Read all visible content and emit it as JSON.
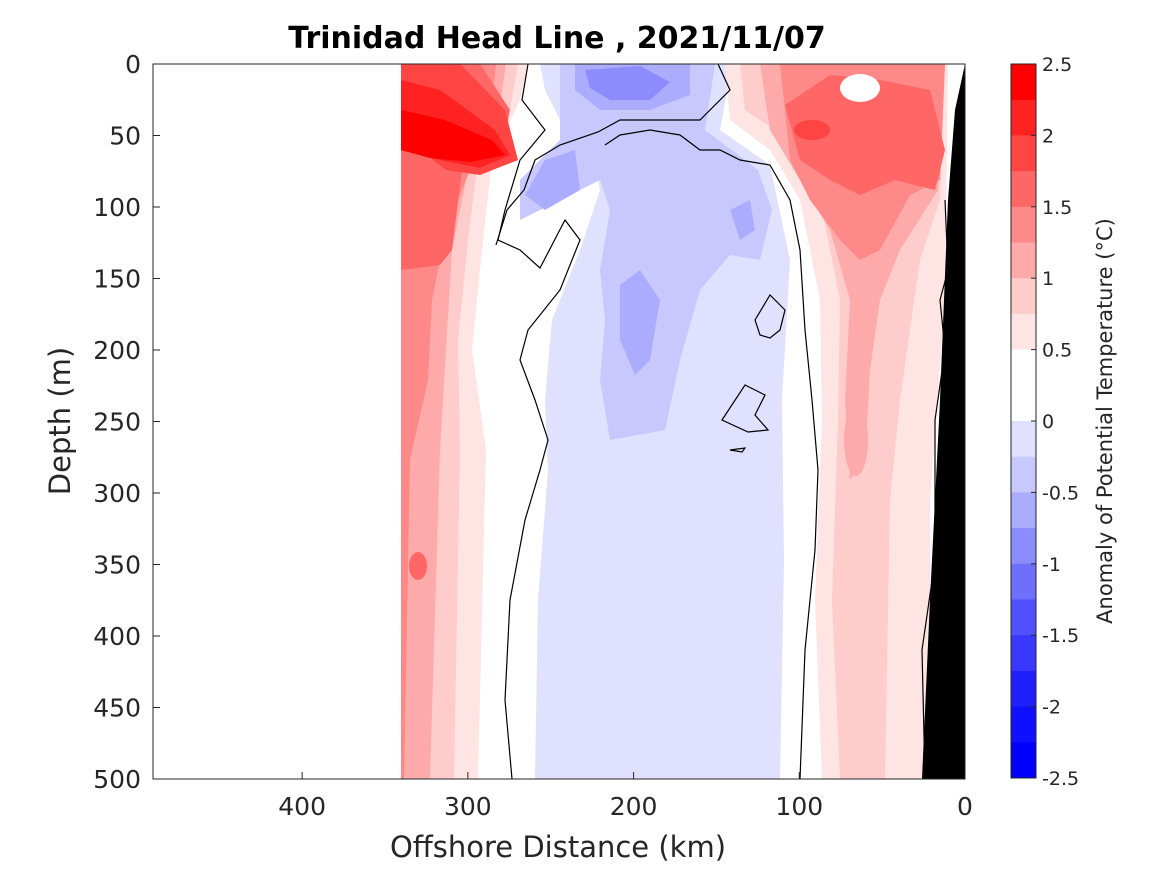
{
  "chart_data": {
    "type": "heatmap",
    "subtype": "filled-contour section",
    "title": "Trinidad Head Line , 2021/11/07",
    "xlabel": "Offshore Distance (km)",
    "ylabel": "Depth (m)",
    "colorbar_label": "Anomaly of Potential Temperature (°C)",
    "xlim": [
      490,
      0
    ],
    "x_reversed": true,
    "ylim": [
      0,
      500
    ],
    "y_reversed": true,
    "xticks": [
      "400",
      "300",
      "200",
      "100",
      "0"
    ],
    "yticks": [
      "0",
      "50",
      "100",
      "150",
      "200",
      "250",
      "300",
      "350",
      "400",
      "450",
      "500"
    ],
    "colorbar": {
      "range": [
        -2.5,
        2.5
      ],
      "step": 0.25,
      "tick_labels": [
        "2.5",
        "2",
        "1.5",
        "1",
        "0.5",
        "0",
        "-0.5",
        "-1",
        "-1.5",
        "-2",
        "-2.5"
      ],
      "colors_high_to_low": [
        "#ff0000",
        "#ff2222",
        "#ff4444",
        "#ff6666",
        "#ff8888",
        "#ffaaaa",
        "#ffcccc",
        "#ffe4e4",
        "#ffffff",
        "#ffffff",
        "#e0e0ff",
        "#c8c8ff",
        "#acacff",
        "#8c8cff",
        "#6e6eff",
        "#5050ff",
        "#3838ff",
        "#2020ff",
        "#1010ff",
        "#0000ff"
      ]
    },
    "data_coverage_km": [
      340,
      0
    ],
    "bathymetry_color": "#000000",
    "contour_levels": [
      0
    ],
    "features": [
      {
        "region": "x 340-280 km, 0-500 m",
        "anomaly": "warm 0.75 to 2.5, max near 50-70 m at ~320 km"
      },
      {
        "region": "x 230-160 km, 0-30 m",
        "anomaly": "cool about -1"
      },
      {
        "region": "x 250-100 km, 60-500 m",
        "anomaly": "cool -0.25 to -0.75"
      },
      {
        "region": "x 110-10 km, 0-500 m",
        "anomaly": "warm 0.25 to 1.25, max near 50 m at ~80 km"
      }
    ]
  }
}
